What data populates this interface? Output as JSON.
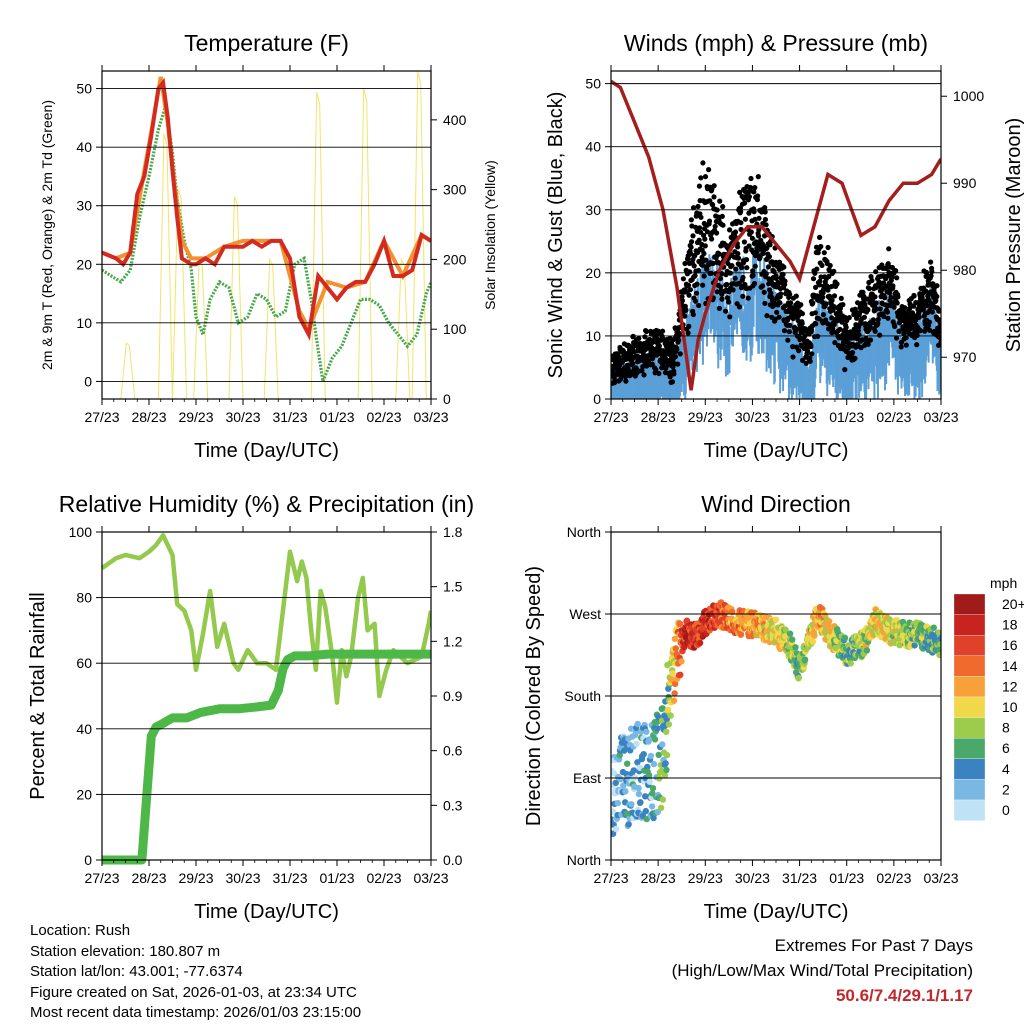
{
  "colors": {
    "temp": "#d32b20",
    "temp9m": "#f2912e",
    "dewpoint": "#4aa84a",
    "solar": "#f4e36a",
    "wind": "#5b9fd7",
    "gust": "#000000",
    "pressure": "#a41e1e",
    "rh": "#93c94c",
    "precip": "#4db848",
    "extremes": "#c0282d"
  },
  "chart_data": [
    {
      "id": "temperature",
      "type": "line",
      "title": "Temperature (F)",
      "xlabel": "Time (Day/UTC)",
      "ylabel": "2m & 9m T (Red, Orange) & 2m Td (Green)",
      "ylabel_right": "Solar Insolation (Yellow)",
      "x_ticks": [
        "27/23",
        "28/23",
        "29/23",
        "30/23",
        "31/23",
        "01/23",
        "02/23",
        "03/23"
      ],
      "xlim": [
        0,
        7
      ],
      "ylim": [
        -3,
        53
      ],
      "y_ticks": [
        0,
        10,
        20,
        30,
        40,
        50
      ],
      "ylim_right": [
        0,
        470
      ],
      "y_ticks_right": [
        0,
        100,
        200,
        300,
        400
      ],
      "series": [
        {
          "name": "2m Temperature",
          "color_key": "temp",
          "x": [
            0,
            0.15,
            0.3,
            0.45,
            0.6,
            0.75,
            0.9,
            1.05,
            1.2,
            1.3,
            1.4,
            1.5,
            1.6,
            1.7,
            1.9,
            2.0,
            2.2,
            2.4,
            2.6,
            2.8,
            3.0,
            3.2,
            3.4,
            3.6,
            3.8,
            4.0,
            4.2,
            4.4,
            4.6,
            4.8,
            5.0,
            5.2,
            5.4,
            5.6,
            5.8,
            6.0,
            6.2,
            6.4,
            6.6,
            6.8,
            7.0
          ],
          "y": [
            22,
            21.5,
            21,
            20,
            22,
            32,
            35,
            42,
            50,
            51,
            45,
            36,
            28,
            21,
            20,
            20,
            21,
            20,
            23,
            23,
            23,
            24,
            23,
            24,
            24,
            21,
            11,
            8,
            18,
            16,
            14,
            16,
            17,
            17,
            20,
            24,
            18,
            18,
            19,
            25,
            24
          ]
        },
        {
          "name": "9m Temperature",
          "color_key": "temp9m",
          "x": [
            0,
            0.3,
            0.6,
            0.9,
            1.1,
            1.25,
            1.4,
            1.55,
            1.7,
            1.9,
            2.2,
            2.6,
            3.0,
            3.4,
            3.8,
            4.2,
            4.4,
            4.8,
            5.2,
            5.6,
            6.0,
            6.4,
            6.8,
            7.0
          ],
          "y": [
            22,
            21,
            22,
            36,
            45,
            52,
            44,
            33,
            24,
            21,
            21,
            23,
            24,
            24,
            24,
            12,
            9,
            17,
            16,
            17,
            24,
            18,
            25,
            24
          ]
        },
        {
          "name": "2m Dewpoint",
          "color_key": "dewpoint",
          "x": [
            0,
            0.2,
            0.4,
            0.6,
            0.8,
            1.0,
            1.2,
            1.35,
            1.5,
            1.6,
            1.75,
            1.9,
            2.0,
            2.15,
            2.3,
            2.5,
            2.7,
            2.9,
            3.1,
            3.3,
            3.5,
            3.7,
            3.9,
            4.1,
            4.3,
            4.45,
            4.55,
            4.7,
            4.9,
            5.1,
            5.3,
            5.5,
            5.7,
            5.9,
            6.1,
            6.3,
            6.5,
            6.7,
            6.9,
            7.0
          ],
          "y": [
            19,
            18,
            17,
            19,
            28,
            35,
            43,
            47,
            39,
            31,
            24,
            19,
            11,
            8,
            14,
            17,
            16,
            10,
            11,
            15,
            14,
            11,
            12,
            20,
            21,
            14,
            8,
            0,
            4,
            6,
            10,
            14,
            14,
            13,
            10,
            8,
            6,
            8,
            15,
            17
          ]
        }
      ],
      "solar": {
        "name": "Solar Insolation",
        "color_key": "solar",
        "peaks": [
          {
            "x": 0.55,
            "value": 80
          },
          {
            "x": 1.35,
            "value": 380
          },
          {
            "x": 1.65,
            "value": 300
          },
          {
            "x": 2.1,
            "value": 200
          },
          {
            "x": 2.85,
            "value": 290
          },
          {
            "x": 3.6,
            "value": 200
          },
          {
            "x": 4.6,
            "value": 440
          },
          {
            "x": 5.6,
            "value": 445
          },
          {
            "x": 6.4,
            "value": 200
          },
          {
            "x": 6.75,
            "value": 470
          }
        ]
      }
    },
    {
      "id": "winds",
      "type": "scatter",
      "title": "Winds (mph) & Pressure (mb)",
      "xlabel": "Time (Day/UTC)",
      "ylabel": "Sonic Wind & Gust (Blue, Black)",
      "ylabel_right": "Station Pressure (Maroon)",
      "x_ticks": [
        "27/23",
        "28/23",
        "29/23",
        "30/23",
        "31/23",
        "01/23",
        "02/23",
        "03/23"
      ],
      "xlim": [
        0,
        7
      ],
      "ylim": [
        0,
        52
      ],
      "y_ticks": [
        0,
        10,
        20,
        30,
        40,
        50
      ],
      "ylim_right": [
        965.2,
        1002.9
      ],
      "y_ticks_right": [
        970,
        980,
        990,
        1000
      ],
      "wind_envelope": {
        "name": "Sonic Wind",
        "color_key": "wind",
        "x": [
          0,
          0.5,
          1.0,
          1.3,
          1.6,
          1.9,
          2.2,
          2.5,
          2.8,
          3.1,
          3.4,
          3.7,
          4.0,
          4.2,
          4.4,
          4.7,
          5.0,
          5.3,
          5.6,
          5.9,
          6.2,
          6.5,
          6.8,
          7.0
        ],
        "y": [
          4,
          6,
          7,
          5,
          12,
          19,
          20,
          16,
          19,
          22,
          16,
          12,
          9,
          5,
          15,
          12,
          7,
          10,
          12,
          16,
          9,
          11,
          16,
          9
        ]
      },
      "gust_envelope": {
        "name": "Gust",
        "color_key": "gust",
        "x": [
          0,
          0.5,
          1.0,
          1.3,
          1.6,
          1.9,
          2.2,
          2.5,
          2.8,
          3.1,
          3.4,
          3.7,
          4.0,
          4.2,
          4.4,
          4.7,
          5.0,
          5.3,
          5.6,
          5.9,
          6.2,
          6.5,
          6.8,
          7.0
        ],
        "y": [
          5,
          9,
          10,
          8,
          22,
          36,
          35,
          26,
          34,
          35,
          25,
          20,
          14,
          10,
          28,
          20,
          11,
          16,
          19,
          23,
          14,
          16,
          22,
          12
        ]
      },
      "pressure": {
        "name": "Station Pressure",
        "color_key": "pressure",
        "x": [
          0,
          0.2,
          0.5,
          0.8,
          1.1,
          1.4,
          1.55,
          1.7,
          1.85,
          2.0,
          2.3,
          2.6,
          2.9,
          3.2,
          3.5,
          3.8,
          4.0,
          4.3,
          4.6,
          4.9,
          5.1,
          5.3,
          5.6,
          5.9,
          6.2,
          6.5,
          6.8,
          7.0
        ],
        "y": [
          1001.7,
          1001,
          997,
          993,
          987,
          978,
          972,
          966.2,
          972,
          975,
          980,
          983,
          985,
          985,
          983,
          981,
          979,
          985,
          991,
          990,
          987,
          984,
          985,
          988,
          990,
          990,
          991,
          992.8
        ]
      }
    },
    {
      "id": "humidity",
      "type": "line",
      "title": "Relative Humidity (%) & Precipitation (in)",
      "xlabel": "Time (Day/UTC)",
      "ylabel": "Percent & Total Rainfall",
      "x_ticks": [
        "27/23",
        "28/23",
        "29/23",
        "30/23",
        "31/23",
        "01/23",
        "02/23",
        "03/23"
      ],
      "xlim": [
        0,
        7
      ],
      "ylim": [
        0,
        100
      ],
      "y_ticks": [
        0,
        20,
        40,
        60,
        80,
        100
      ],
      "ylim_right": [
        0,
        1.8
      ],
      "y_ticks_right": [
        "0.0",
        "0.3",
        "0.6",
        "0.9",
        "1.2",
        "1.5",
        "1.8"
      ],
      "series": [
        {
          "name": "Relative Humidity",
          "color_key": "rh",
          "x": [
            0,
            0.1,
            0.3,
            0.5,
            0.8,
            1.0,
            1.15,
            1.3,
            1.5,
            1.6,
            1.75,
            1.9,
            2.0,
            2.15,
            2.3,
            2.45,
            2.6,
            2.8,
            2.9,
            3.1,
            3.3,
            3.5,
            3.7,
            3.9,
            4.0,
            4.15,
            4.25,
            4.35,
            4.45,
            4.55,
            4.65,
            4.75,
            4.9,
            5.0,
            5.1,
            5.2,
            5.3,
            5.45,
            5.55,
            5.65,
            5.8,
            5.9,
            6.05,
            6.2,
            6.35,
            6.5,
            6.65,
            6.8,
            6.95,
            7.0
          ],
          "y": [
            89,
            90,
            92,
            93,
            92,
            94,
            96,
            99,
            93,
            78,
            76,
            70,
            58,
            69,
            82,
            65,
            72,
            60,
            58,
            64,
            60,
            60,
            58,
            82,
            94,
            85,
            91,
            86,
            70,
            58,
            82,
            77,
            62,
            48,
            64,
            56,
            62,
            80,
            86,
            70,
            72,
            50,
            58,
            64,
            62,
            60,
            61,
            62,
            72,
            76
          ]
        },
        {
          "name": "Total Precipitation",
          "color_key": "precip",
          "x": [
            0,
            0.3,
            0.6,
            0.85,
            0.95,
            1.05,
            1.15,
            1.3,
            1.5,
            1.8,
            2.1,
            2.5,
            2.9,
            3.3,
            3.6,
            3.75,
            3.85,
            3.95,
            4.1,
            4.4,
            4.8,
            5.2,
            5.6,
            6.0,
            6.4,
            6.8,
            7.0
          ],
          "y": [
            0,
            0,
            0,
            0,
            0.35,
            0.68,
            0.73,
            0.75,
            0.78,
            0.78,
            0.81,
            0.83,
            0.83,
            0.84,
            0.85,
            0.93,
            1.05,
            1.1,
            1.12,
            1.12,
            1.13,
            1.13,
            1.13,
            1.13,
            1.13,
            1.13,
            1.13
          ]
        }
      ]
    },
    {
      "id": "direction",
      "type": "scatter",
      "title": "Wind Direction",
      "xlabel": "Time (Day/UTC)",
      "ylabel": "Direction (Colored By Speed)",
      "x_ticks": [
        "27/23",
        "28/23",
        "29/23",
        "30/23",
        "31/23",
        "01/23",
        "02/23",
        "03/23"
      ],
      "xlim": [
        0,
        7
      ],
      "ylim": [
        0,
        360
      ],
      "y_ticks": [
        "North",
        "East",
        "South",
        "West",
        "North"
      ],
      "y_tick_values": [
        0,
        90,
        180,
        270,
        360
      ],
      "direction_track": {
        "x": [
          0,
          0.3,
          0.6,
          0.9,
          1.1,
          1.2,
          1.3,
          1.45,
          1.6,
          1.8,
          2.0,
          2.3,
          2.6,
          2.9,
          3.2,
          3.5,
          3.8,
          4.0,
          4.2,
          4.4,
          4.6,
          4.8,
          5.0,
          5.2,
          5.4,
          5.6,
          5.8,
          6.0,
          6.3,
          6.6,
          6.9,
          7.0
        ],
        "y": [
          80,
          90,
          95,
          100,
          115,
          165,
          200,
          235,
          250,
          245,
          260,
          270,
          262,
          260,
          255,
          250,
          235,
          210,
          240,
          270,
          250,
          240,
          228,
          232,
          240,
          262,
          255,
          250,
          248,
          246,
          240,
          238
        ],
        "speed": [
          2,
          3,
          3,
          4,
          5,
          7,
          10,
          14,
          18,
          16,
          18,
          15,
          13,
          12,
          11,
          10,
          9,
          6,
          9,
          12,
          10,
          8,
          6,
          7,
          8,
          11,
          10,
          9,
          8,
          7,
          6,
          6
        ]
      },
      "legend": {
        "title": "mph",
        "labels": [
          "20+",
          "18",
          "16",
          "14",
          "12",
          "10",
          "8",
          "6",
          "4",
          "2",
          "0"
        ],
        "colors": [
          "#a11b1b",
          "#c8231f",
          "#e0412a",
          "#f0692d",
          "#f8a13a",
          "#f1d84a",
          "#9dcc4d",
          "#4aa86a",
          "#3a83c0",
          "#7ab8e4",
          "#bfe3f5"
        ]
      }
    }
  ],
  "footer": {
    "location": "Location: Rush",
    "elevation": "Station elevation: 180.807 m",
    "latlon": "Station lat/lon: 43.001; -77.6374",
    "created": "Figure created on Sat, 2026-01-03, at 23:34 UTC",
    "recent": "Most recent data timestamp: 2026/01/03 23:15:00",
    "extremes_title": "Extremes For Past 7 Days",
    "extremes_subtitle": "(High/Low/Max Wind/Total Precipitation)",
    "extremes_values": "50.6/7.4/29.1/1.17"
  }
}
